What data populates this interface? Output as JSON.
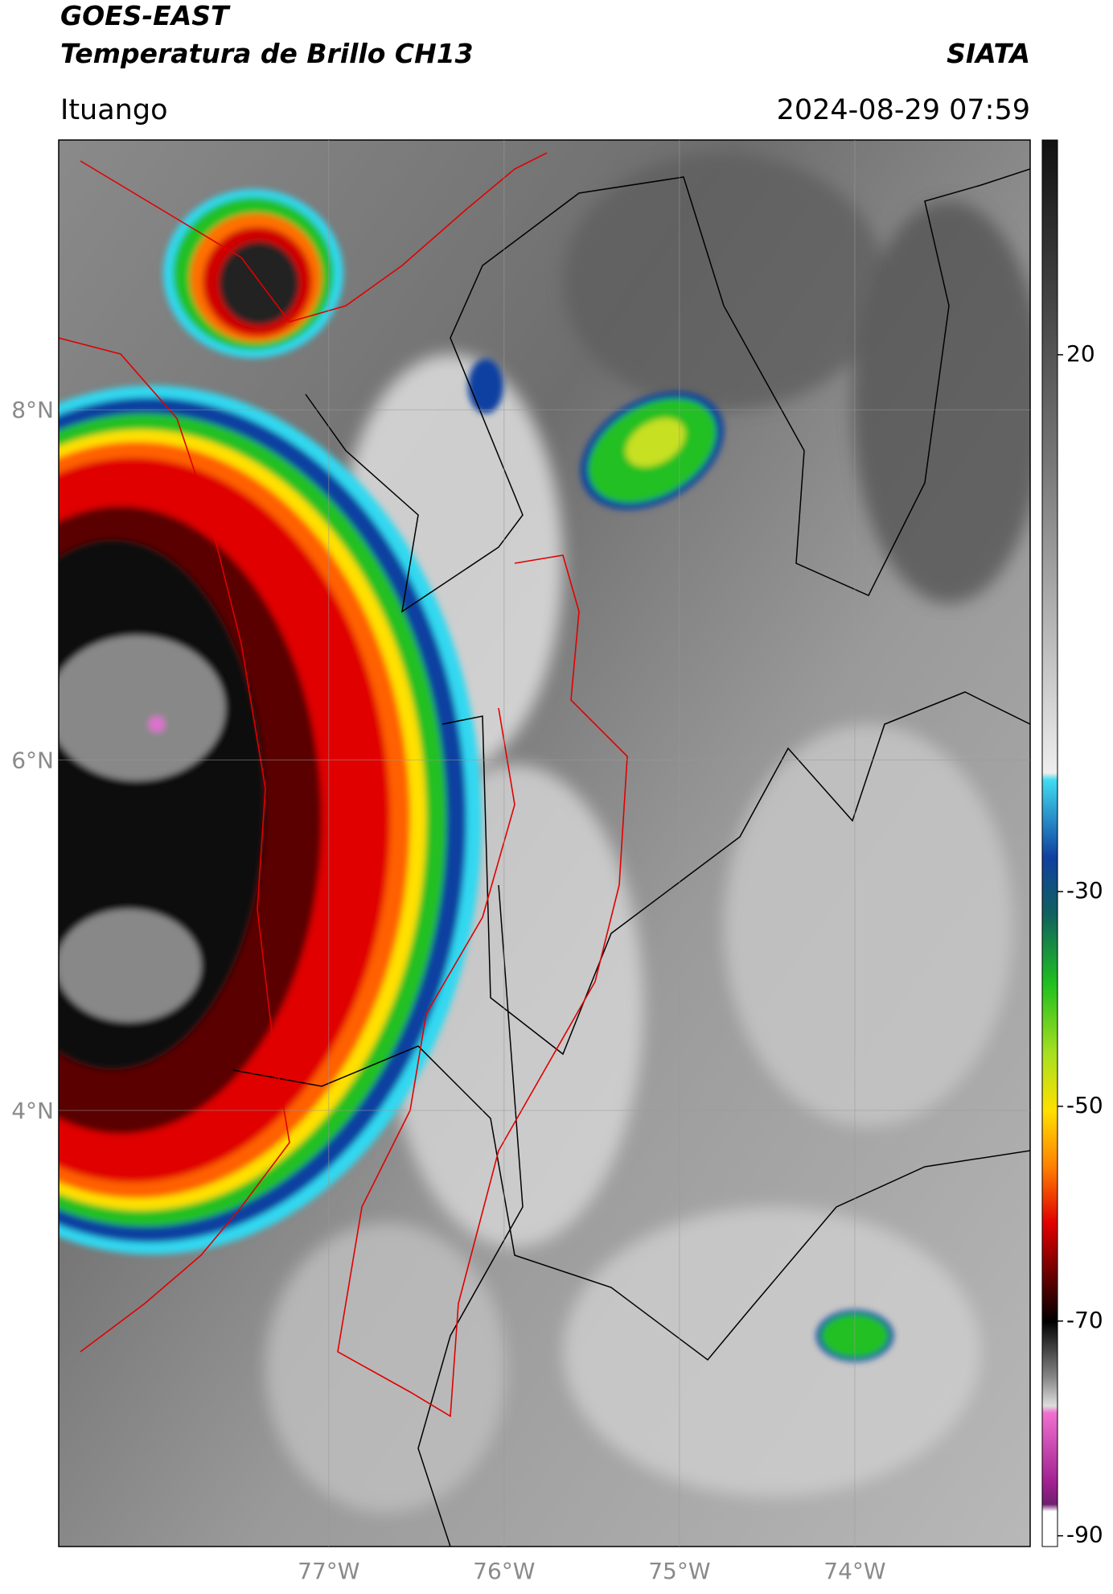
{
  "header": {
    "title": "GOES-EAST",
    "subtitle": "Temperatura de Brillo CH13",
    "org": "SIATA",
    "location": "Ituango",
    "datetime": "2024-08-29 07:59"
  },
  "map": {
    "xlim": [
      -78.54,
      -73.0
    ],
    "ylim": [
      1.51,
      9.54
    ],
    "lat_ticks": [
      {
        "value": 8,
        "label": "8°N"
      },
      {
        "value": 6,
        "label": "6°N"
      },
      {
        "value": 4,
        "label": "4°N"
      }
    ],
    "lon_ticks": [
      {
        "value": -77,
        "label": "77°W"
      },
      {
        "value": -76,
        "label": "76°W"
      },
      {
        "value": -75,
        "label": "75°W"
      },
      {
        "value": -74,
        "label": "74°W"
      }
    ]
  },
  "colorbar": {
    "lim": [
      40,
      -91
    ],
    "ticks": [
      20,
      -30,
      -50,
      -70,
      -90
    ]
  }
}
